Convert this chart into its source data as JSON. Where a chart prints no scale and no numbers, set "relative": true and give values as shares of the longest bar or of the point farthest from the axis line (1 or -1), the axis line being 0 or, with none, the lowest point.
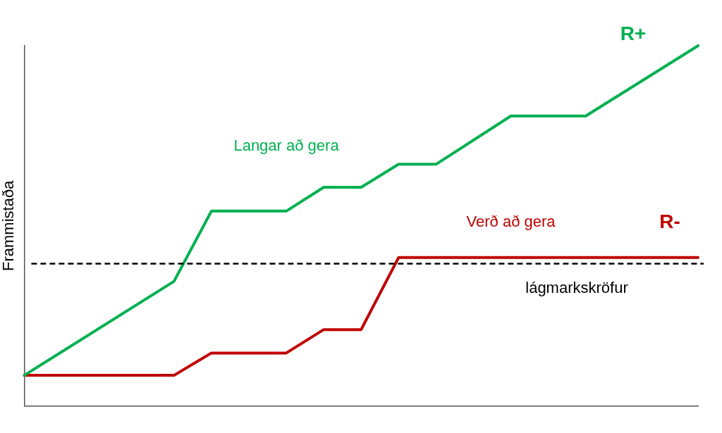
{
  "chart_data": {
    "type": "line",
    "relative": true,
    "ylabel": "Frammistaða",
    "grid": false,
    "legend": false,
    "marker": "none",
    "line_style": "solid",
    "categories": [
      null,
      null,
      null,
      null,
      null,
      null,
      null,
      null,
      null,
      null,
      null,
      null,
      null,
      null,
      null,
      null,
      null,
      null,
      null
    ],
    "series": [
      {
        "name": "R+",
        "color": "#00b050",
        "values": [
          0.085,
          null,
          null,
          null,
          0.346,
          0.541,
          null,
          0.541,
          0.607,
          0.607,
          0.671,
          0.671,
          null,
          0.805,
          null,
          0.805,
          null,
          null,
          1
        ]
      },
      {
        "name": "R-",
        "color": "#c00000",
        "values": [
          0.085,
          null,
          null,
          null,
          0.085,
          0.147,
          null,
          0.147,
          0.212,
          0.212,
          0.412,
          null,
          null,
          null,
          null,
          null,
          null,
          null,
          0.412
        ]
      }
    ],
    "ref_lines": [
      {
        "axis": "y",
        "value": 0.395,
        "label": "lágmarkskröfur",
        "color": "#000000",
        "line_style": "dashed"
      }
    ],
    "annotations": [
      "Langar að gera",
      "Verð að gera"
    ]
  }
}
